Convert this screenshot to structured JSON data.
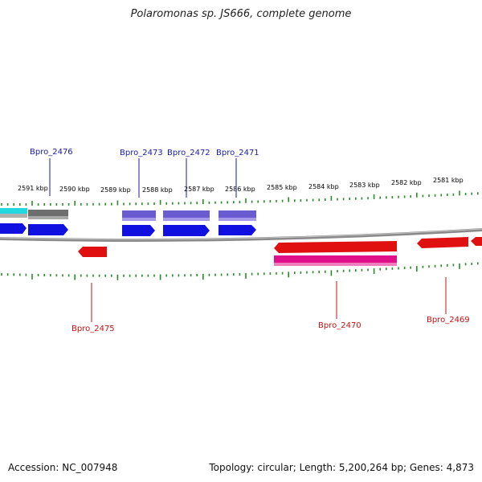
{
  "title": "Polaromonas sp. JS666, complete genome",
  "footer": {
    "accession": "Accession: NC_007948",
    "summary": "Topology: circular; Length: 5,200,264 bp; Genes: 4,873"
  },
  "colors": {
    "forward_cds": "#1010e0",
    "reverse_cds": "#e01010",
    "forward_feature": "#6a5cd0",
    "reverse_feature": "#e0108a",
    "backbone": "#8a8a8a",
    "ticks": "#2a8a2a",
    "forward_label": "#1a1aa8",
    "reverse_label": "#c81010"
  },
  "scale_ticks": [
    {
      "label": "2591 kbp"
    },
    {
      "label": "2590 kbp"
    },
    {
      "label": "2589 kbp"
    },
    {
      "label": "2588 kbp"
    },
    {
      "label": "2587 kbp"
    },
    {
      "label": "2586 kbp"
    },
    {
      "label": "2585 kbp"
    },
    {
      "label": "2584 kbp"
    },
    {
      "label": "2583 kbp"
    },
    {
      "label": "2582 kbp"
    },
    {
      "label": "2581 kbp"
    }
  ],
  "gene_labels": [
    {
      "name": "Bpro_2476",
      "strand": "forward"
    },
    {
      "name": "Bpro_2473",
      "strand": "forward"
    },
    {
      "name": "Bpro_2472",
      "strand": "forward"
    },
    {
      "name": "Bpro_2471",
      "strand": "forward"
    },
    {
      "name": "Bpro_2475",
      "strand": "reverse"
    },
    {
      "name": "Bpro_2470",
      "strand": "reverse"
    },
    {
      "name": "Bpro_2469",
      "strand": "reverse"
    }
  ]
}
